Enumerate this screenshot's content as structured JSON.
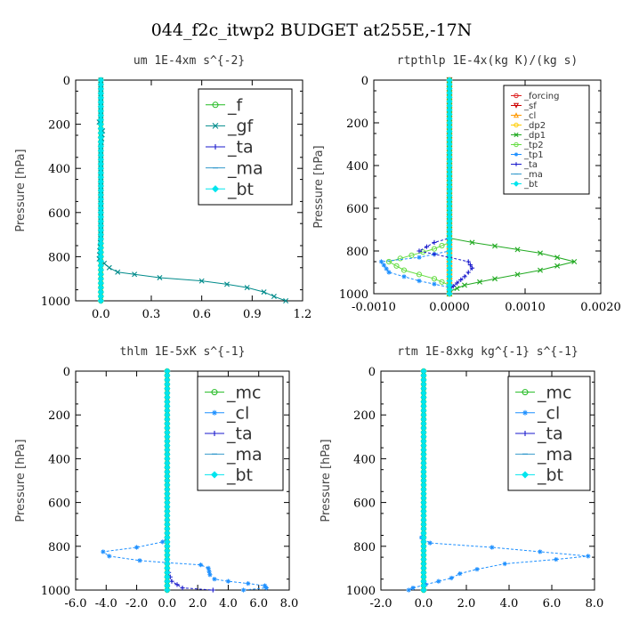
{
  "figure": {
    "title": "044_f2c_itwp2  BUDGET at255E,-17N"
  },
  "chart_data": [
    {
      "type": "line",
      "title": "um   1E-4xm s^{-2}",
      "ylabel": "Pressure [hPa]",
      "xlim": [
        -0.15,
        1.2
      ],
      "ylim": [
        1000,
        0
      ],
      "xticks": [
        "0.0",
        "0.3",
        "0.6",
        "0.9",
        "1.2"
      ],
      "xtick_values": [
        0,
        0.3,
        0.6,
        0.9,
        1.2
      ],
      "yticks": [
        "0",
        "200",
        "400",
        "600",
        "800",
        "1000"
      ],
      "legend_size": "large",
      "series": [
        {
          "name": "_f",
          "color": "#22bb22",
          "marker": "o",
          "points": [
            [
              0,
              0
            ],
            [
              0,
              100
            ],
            [
              0,
              200
            ],
            [
              0,
              300
            ],
            [
              0,
              400
            ],
            [
              0,
              500
            ],
            [
              0,
              600
            ],
            [
              0,
              700
            ],
            [
              0,
              800
            ],
            [
              0,
              900
            ],
            [
              0,
              1000
            ]
          ]
        },
        {
          "name": "_gf",
          "color": "#008b8b",
          "marker": "x",
          "points": [
            [
              0,
              0
            ],
            [
              0,
              100
            ],
            [
              0,
              180
            ],
            [
              -0.01,
              190
            ],
            [
              0.01,
              230
            ],
            [
              0,
              300
            ],
            [
              0,
              500
            ],
            [
              0,
              700
            ],
            [
              -0.01,
              810
            ],
            [
              0.02,
              830
            ],
            [
              0.05,
              850
            ],
            [
              0.1,
              870
            ],
            [
              0.2,
              880
            ],
            [
              0.35,
              895
            ],
            [
              0.6,
              910
            ],
            [
              0.75,
              925
            ],
            [
              0.87,
              940
            ],
            [
              0.97,
              960
            ],
            [
              1.03,
              980
            ],
            [
              1.1,
              1000
            ]
          ]
        },
        {
          "name": "_ta",
          "color": "#1a1acc",
          "marker": "+",
          "points": [
            [
              0,
              0
            ],
            [
              0,
              200
            ],
            [
              0,
              500
            ],
            [
              0,
              800
            ],
            [
              0,
              1000
            ]
          ]
        },
        {
          "name": "_ma",
          "color": "#3399cc",
          "marker": "-",
          "points": [
            [
              0,
              0
            ],
            [
              0,
              500
            ],
            [
              0,
              1000
            ]
          ]
        },
        {
          "name": "_bt",
          "color": "#00e5ee",
          "marker": "d",
          "points": [
            [
              0,
              0
            ],
            [
              0,
              500
            ],
            [
              0,
              1000
            ]
          ]
        }
      ]
    },
    {
      "type": "line",
      "title": "rtpthlp   1E-4x(kg K)/(kg s)",
      "ylabel": "Pressure [hPa]",
      "xlim": [
        -0.001,
        0.002
      ],
      "ylim": [
        1000,
        0
      ],
      "xticks": [
        "-0.0010",
        "0.0000",
        "0.0010",
        "0.0020"
      ],
      "xtick_values": [
        -0.001,
        0,
        0.001,
        0.002
      ],
      "yticks": [
        "0",
        "200",
        "400",
        "600",
        "800",
        "1000"
      ],
      "legend_size": "small",
      "series": [
        {
          "name": "_forcing",
          "color": "#dd2222",
          "marker": "o",
          "points": [
            [
              0,
              0
            ],
            [
              0,
              500
            ],
            [
              0,
              1000
            ]
          ]
        },
        {
          "name": "_sf",
          "color": "#cc0000",
          "marker": "v",
          "points": [
            [
              0,
              0
            ],
            [
              0,
              500
            ],
            [
              0,
              1000
            ]
          ]
        },
        {
          "name": "_cl",
          "color": "#ff9900",
          "marker": "^",
          "points": [
            [
              0,
              0
            ],
            [
              0,
              500
            ],
            [
              0,
              1000
            ]
          ]
        },
        {
          "name": "_dp2",
          "color": "#ffcc00",
          "marker": "o",
          "points": [
            [
              0,
              0
            ],
            [
              0,
              500
            ],
            [
              0,
              1000
            ]
          ]
        },
        {
          "name": "_dp1",
          "color": "#22aa22",
          "marker": "x",
          "points": [
            [
              0,
              0
            ],
            [
              0,
              740
            ],
            [
              0.0003,
              760
            ],
            [
              0.0012,
              810
            ],
            [
              0.00165,
              850
            ],
            [
              0.0012,
              890
            ],
            [
              0.0006,
              930
            ],
            [
              0.0002,
              960
            ],
            [
              0,
              990
            ],
            [
              0,
              1000
            ]
          ]
        },
        {
          "name": "_tp2",
          "color": "#66dd44",
          "marker": "o",
          "points": [
            [
              0,
              0
            ],
            [
              0,
              760
            ],
            [
              -0.0002,
              790
            ],
            [
              -0.0005,
              820
            ],
            [
              -0.0008,
              850
            ],
            [
              -0.0006,
              890
            ],
            [
              -0.0002,
              930
            ],
            [
              0,
              960
            ],
            [
              0,
              1000
            ]
          ]
        },
        {
          "name": "_tp1",
          "color": "#1e90ff",
          "marker": "*",
          "points": [
            [
              0,
              0
            ],
            [
              0,
              800
            ],
            [
              -0.0004,
              830
            ],
            [
              -0.0009,
              850
            ],
            [
              -0.0008,
              900
            ],
            [
              -0.0004,
              940
            ],
            [
              0,
              970
            ],
            [
              0,
              1000
            ]
          ]
        },
        {
          "name": "_ta",
          "color": "#1a1acc",
          "marker": "+",
          "points": [
            [
              0,
              0
            ],
            [
              0,
              740
            ],
            [
              -0.0002,
              760
            ],
            [
              -0.0004,
              800
            ],
            [
              0,
              830
            ],
            [
              0.00025,
              850
            ],
            [
              0.0003,
              880
            ],
            [
              0.0002,
              920
            ],
            [
              0.0001,
              950
            ],
            [
              0,
              980
            ],
            [
              0,
              1000
            ]
          ]
        },
        {
          "name": "_ma",
          "color": "#3399cc",
          "marker": "-",
          "points": [
            [
              0,
              0
            ],
            [
              0,
              500
            ],
            [
              0,
              1000
            ]
          ]
        },
        {
          "name": "_bt",
          "color": "#00e5ee",
          "marker": "d",
          "points": [
            [
              0,
              0
            ],
            [
              0,
              500
            ],
            [
              0,
              1000
            ]
          ]
        }
      ]
    },
    {
      "type": "line",
      "title": "thlm   1E-5xK s^{-1}",
      "ylabel": "Pressure [hPa]",
      "xlim": [
        -6,
        8
      ],
      "ylim": [
        1000,
        0
      ],
      "xticks": [
        "-6.0",
        "-4.0",
        "-2.0",
        "0.0",
        "2.0",
        "4.0",
        "6.0",
        "8.0"
      ],
      "xtick_values": [
        -6,
        -4,
        -2,
        0,
        2,
        4,
        6,
        8
      ],
      "yticks": [
        "0",
        "200",
        "400",
        "600",
        "800",
        "1000"
      ],
      "legend_size": "large",
      "series": [
        {
          "name": "_mc",
          "color": "#22bb22",
          "marker": "o",
          "points": [
            [
              0,
              0
            ],
            [
              0,
              100
            ],
            [
              0,
              200
            ],
            [
              0,
              300
            ],
            [
              0,
              400
            ],
            [
              0,
              500
            ],
            [
              0,
              600
            ],
            [
              0,
              700
            ],
            [
              0,
              800
            ],
            [
              0,
              900
            ],
            [
              0,
              1000
            ]
          ]
        },
        {
          "name": "_cl",
          "color": "#1e90ff",
          "marker": "*",
          "points": [
            [
              0,
              0
            ],
            [
              0,
              500
            ],
            [
              0,
              760
            ],
            [
              -0.3,
              780
            ],
            [
              -2,
              805
            ],
            [
              -4.2,
              825
            ],
            [
              -3.8,
              845
            ],
            [
              -1.8,
              865
            ],
            [
              0,
              875
            ],
            [
              2.2,
              885
            ],
            [
              2.7,
              900
            ],
            [
              2.8,
              930
            ],
            [
              3.1,
              950
            ],
            [
              4,
              960
            ],
            [
              5.3,
              970
            ],
            [
              6.4,
              980
            ],
            [
              6.5,
              990
            ],
            [
              5,
              1000
            ]
          ]
        },
        {
          "name": "_ta",
          "color": "#1a1acc",
          "marker": "+",
          "points": [
            [
              0,
              0
            ],
            [
              0,
              600
            ],
            [
              0,
              900
            ],
            [
              0.3,
              960
            ],
            [
              1,
              990
            ],
            [
              3,
              1000
            ]
          ]
        },
        {
          "name": "_ma",
          "color": "#3399cc",
          "marker": "-",
          "points": [
            [
              0,
              0
            ],
            [
              0,
              500
            ],
            [
              0,
              1000
            ]
          ]
        },
        {
          "name": "_bt",
          "color": "#00e5ee",
          "marker": "d",
          "points": [
            [
              0,
              0
            ],
            [
              0,
              500
            ],
            [
              0,
              1000
            ]
          ]
        }
      ]
    },
    {
      "type": "line",
      "title": "rtm   1E-8xkg kg^{-1} s^{-1}",
      "ylabel": "Pressure [hPa]",
      "xlim": [
        -2,
        8
      ],
      "ylim": [
        1000,
        0
      ],
      "xticks": [
        "-2.0",
        "0.0",
        "2.0",
        "4.0",
        "6.0",
        "8.0"
      ],
      "xtick_values": [
        -2,
        0,
        2,
        4,
        6,
        8
      ],
      "yticks": [
        "0",
        "200",
        "400",
        "600",
        "800",
        "1000"
      ],
      "legend_size": "large",
      "series": [
        {
          "name": "_mc",
          "color": "#22bb22",
          "marker": "o",
          "points": [
            [
              0,
              0
            ],
            [
              0,
              100
            ],
            [
              0,
              200
            ],
            [
              0,
              300
            ],
            [
              0,
              400
            ],
            [
              0,
              500
            ],
            [
              0,
              600
            ],
            [
              0,
              700
            ],
            [
              0,
              800
            ],
            [
              0,
              900
            ],
            [
              0,
              1000
            ]
          ]
        },
        {
          "name": "_cl",
          "color": "#1e90ff",
          "marker": "*",
          "points": [
            [
              0,
              0
            ],
            [
              0,
              500
            ],
            [
              0,
              740
            ],
            [
              -0.1,
              760
            ],
            [
              0.3,
              785
            ],
            [
              3.2,
              805
            ],
            [
              7.7,
              845
            ],
            [
              6.2,
              860
            ],
            [
              3.8,
              880
            ],
            [
              2.5,
              905
            ],
            [
              1.7,
              925
            ],
            [
              1.3,
              945
            ],
            [
              0.7,
              960
            ],
            [
              0.1,
              975
            ],
            [
              -0.5,
              990
            ],
            [
              -0.7,
              1000
            ]
          ]
        },
        {
          "name": "_ta",
          "color": "#1a1acc",
          "marker": "+",
          "points": [
            [
              0,
              0
            ],
            [
              0,
              600
            ],
            [
              0,
              1000
            ]
          ]
        },
        {
          "name": "_ma",
          "color": "#3399cc",
          "marker": "-",
          "points": [
            [
              0,
              0
            ],
            [
              0,
              500
            ],
            [
              0,
              1000
            ]
          ]
        },
        {
          "name": "_bt",
          "color": "#00e5ee",
          "marker": "d",
          "points": [
            [
              0,
              0
            ],
            [
              0,
              500
            ],
            [
              0,
              1000
            ]
          ]
        }
      ]
    }
  ]
}
